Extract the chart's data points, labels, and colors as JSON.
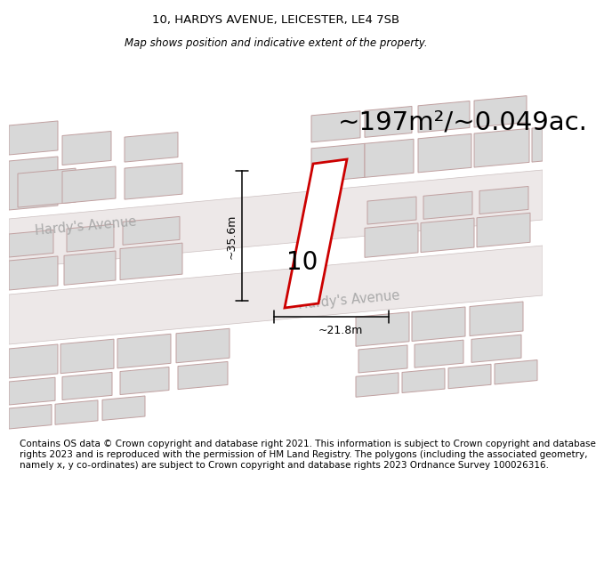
{
  "title": "10, HARDYS AVENUE, LEICESTER, LE4 7SB",
  "subtitle": "Map shows position and indicative extent of the property.",
  "area_text": "~197m²/~0.049ac.",
  "number_label": "10",
  "dim_horizontal": "~21.8m",
  "dim_vertical": "~35.6m",
  "street_label_upper": "Hardy's Avenue",
  "street_label_lower": "Hardy's Avenue",
  "footer": "Contains OS data © Crown copyright and database right 2021. This information is subject to Crown copyright and database rights 2023 and is reproduced with the permission of HM Land Registry. The polygons (including the associated geometry, namely x, y co-ordinates) are subject to Crown copyright and database rights 2023 Ordnance Survey 100026316.",
  "map_bg": "#f7f5f5",
  "building_fill": "#d8d8d8",
  "building_edge": "#c0a0a0",
  "road_fill": "#ede8e8",
  "highlight_color": "#cc0000",
  "title_fontsize": 9.5,
  "subtitle_fontsize": 8.5,
  "area_fontsize": 21,
  "number_fontsize": 20,
  "footer_fontsize": 7.5,
  "street_fontsize": 10.5,
  "dim_fontsize": 9
}
